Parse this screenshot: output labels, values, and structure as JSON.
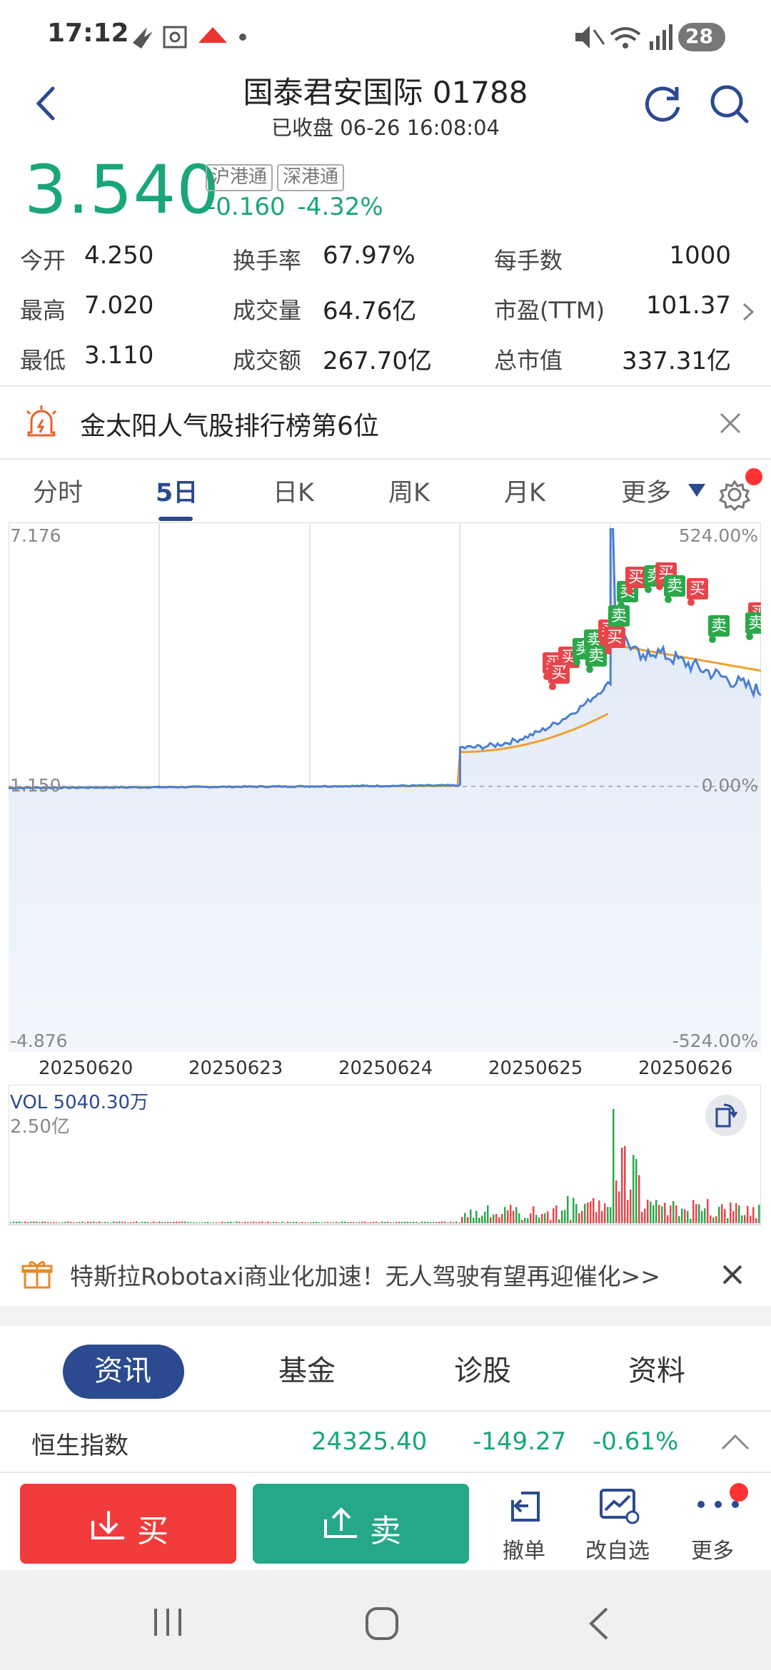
{
  "status_bar": {
    "time": "17:12",
    "battery": "28"
  },
  "header": {
    "title": "国泰君安国际 01788",
    "subtitle": "已收盘 06-26 16:08:04"
  },
  "quote": {
    "price": "3.540",
    "tags": [
      "沪港通",
      "深港通"
    ],
    "change": "-0.160",
    "change_pct": "-4.32%"
  },
  "stats": {
    "open_label": "今开",
    "open": "4.250",
    "high_label": "最高",
    "high": "7.020",
    "low_label": "最低",
    "low": "3.110",
    "turnover_rate_label": "换手率",
    "turnover_rate": "67.97%",
    "volume_label": "成交量",
    "volume": "64.76亿",
    "amount_label": "成交额",
    "amount": "267.70亿",
    "lot_label": "每手数",
    "lot": "1000",
    "pe_label": "市盈(TTM)",
    "pe": "101.37",
    "mcap_label": "总市值",
    "mcap": "337.31亿"
  },
  "ranking_banner": {
    "text": "金太阳人气股排行榜第6位"
  },
  "chart_tabs": [
    "分时",
    "5日",
    "日K",
    "周K",
    "月K",
    "更多"
  ],
  "active_chart_tab": "5日",
  "chart": {
    "y_left_top": "7.176",
    "y_left_mid": "1.150",
    "y_left_bottom": "-4.876",
    "y_right_top": "524.00%",
    "y_right_mid": "0.00%",
    "y_right_bottom": "-524.00%",
    "dates": [
      "20250620",
      "20250623",
      "20250624",
      "20250625",
      "20250626"
    ],
    "buy_marker": "买",
    "sell_marker": "卖"
  },
  "volume": {
    "label": "VOL 5040.30万",
    "max": "2.50亿"
  },
  "news_banner": {
    "text": "特斯拉Robotaxi商业化加速！无人驾驶有望再迎催化>>"
  },
  "sub_tabs": [
    "资讯",
    "基金",
    "诊股",
    "资料"
  ],
  "index_bar": {
    "name": "恒生指数",
    "value": "24325.40",
    "change": "-149.27",
    "change_pct": "-0.61%"
  },
  "toolbar": {
    "buy": "买",
    "sell": "卖",
    "cancel": "撤单",
    "watchlist": "改自选",
    "more": "更多"
  },
  "colors": {
    "up": "#e8333a",
    "down": "#1aa57a",
    "accent": "#2b4a8f",
    "buy_btn": "#f23b3b",
    "sell_btn": "#26a78a"
  },
  "chart_data": {
    "type": "line",
    "title": "",
    "x": [
      "20250620",
      "20250623",
      "20250624",
      "20250625",
      "20250626"
    ],
    "ylim": [
      -4.876,
      7.176
    ],
    "y_pct_range": [
      "-524.00%",
      "524.00%"
    ],
    "prev_close": 1.15,
    "series": [
      {
        "values": [
          1.15,
          1.16,
          1.18,
          2.2,
          3.54
        ]
      }
    ]
  }
}
